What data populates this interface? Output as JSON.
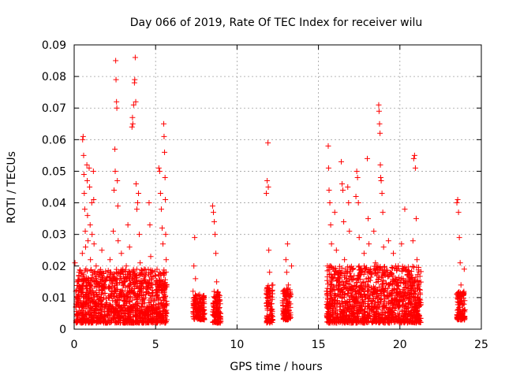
{
  "chart_data": {
    "type": "scatter",
    "title": "Day 066 of 2019, Rate Of TEC Index for receiver wilu",
    "xlabel": "GPS time / hours",
    "ylabel": "ROTI / TECUs",
    "xlim": [
      0,
      25
    ],
    "ylim": [
      0,
      0.09
    ],
    "xticks": [
      "0",
      "5",
      "10",
      "15",
      "20",
      "25"
    ],
    "yticks": [
      "0",
      "0.01",
      "0.02",
      "0.03",
      "0.04",
      "0.05",
      "0.06",
      "0.07",
      "0.08",
      "0.09"
    ],
    "grid": true,
    "marker": "plus",
    "color": "#ff0000",
    "series": [
      {
        "points": [
          [
            0.05,
            0.021
          ],
          [
            0.1,
            0.012
          ],
          [
            0.15,
            0.008
          ],
          [
            0.2,
            0.015
          ],
          [
            0.25,
            0.005
          ],
          [
            0.3,
            0.018
          ],
          [
            0.35,
            0.009
          ],
          [
            0.4,
            0.013
          ],
          [
            0.45,
            0.007
          ],
          [
            0.5,
            0.024
          ],
          [
            0.52,
            0.06
          ],
          [
            0.55,
            0.061
          ],
          [
            0.58,
            0.055
          ],
          [
            0.6,
            0.049
          ],
          [
            0.62,
            0.043
          ],
          [
            0.65,
            0.038
          ],
          [
            0.68,
            0.031
          ],
          [
            0.7,
            0.026
          ],
          [
            0.72,
            0.019
          ],
          [
            0.75,
            0.011
          ],
          [
            0.78,
            0.052
          ],
          [
            0.8,
            0.047
          ],
          [
            0.82,
            0.036
          ],
          [
            0.85,
            0.028
          ],
          [
            0.88,
            0.016
          ],
          [
            0.9,
            0.01
          ],
          [
            0.92,
            0.051
          ],
          [
            0.95,
            0.045
          ],
          [
            0.98,
            0.033
          ],
          [
            1.0,
            0.022
          ],
          [
            1.02,
            0.014
          ],
          [
            1.05,
            0.009
          ],
          [
            1.08,
            0.04
          ],
          [
            1.1,
            0.03
          ],
          [
            1.12,
            0.018
          ],
          [
            1.15,
            0.012
          ],
          [
            1.18,
            0.05
          ],
          [
            1.2,
            0.041
          ],
          [
            1.22,
            0.027
          ],
          [
            1.25,
            0.015
          ],
          [
            1.3,
            0.008
          ],
          [
            1.35,
            0.02
          ],
          [
            1.4,
            0.011
          ],
          [
            1.5,
            0.017
          ],
          [
            1.6,
            0.009
          ],
          [
            1.7,
            0.025
          ],
          [
            1.8,
            0.013
          ],
          [
            1.9,
            0.007
          ],
          [
            2.0,
            0.016
          ],
          [
            2.1,
            0.01
          ],
          [
            2.2,
            0.022
          ],
          [
            2.3,
            0.012
          ],
          [
            2.4,
            0.031
          ],
          [
            2.45,
            0.044
          ],
          [
            2.5,
            0.057
          ],
          [
            2.52,
            0.05
          ],
          [
            2.55,
            0.085
          ],
          [
            2.57,
            0.079
          ],
          [
            2.6,
            0.072
          ],
          [
            2.62,
            0.07
          ],
          [
            2.65,
            0.047
          ],
          [
            2.68,
            0.039
          ],
          [
            2.7,
            0.028
          ],
          [
            2.75,
            0.018
          ],
          [
            2.8,
            0.011
          ],
          [
            2.9,
            0.024
          ],
          [
            3.0,
            0.014
          ],
          [
            3.1,
            0.009
          ],
          [
            3.2,
            0.02
          ],
          [
            3.3,
            0.033
          ],
          [
            3.4,
            0.026
          ],
          [
            3.45,
            0.017
          ],
          [
            3.5,
            0.012
          ],
          [
            3.55,
            0.064
          ],
          [
            3.58,
            0.067
          ],
          [
            3.6,
            0.065
          ],
          [
            3.65,
            0.071
          ],
          [
            3.7,
            0.078
          ],
          [
            3.72,
            0.079
          ],
          [
            3.75,
            0.086
          ],
          [
            3.78,
            0.072
          ],
          [
            3.8,
            0.046
          ],
          [
            3.85,
            0.038
          ],
          [
            3.9,
            0.04
          ],
          [
            3.95,
            0.043
          ],
          [
            4.0,
            0.03
          ],
          [
            4.05,
            0.021
          ],
          [
            4.1,
            0.013
          ],
          [
            4.2,
            0.008
          ],
          [
            4.3,
            0.019
          ],
          [
            4.4,
            0.011
          ],
          [
            4.5,
            0.015
          ],
          [
            4.6,
            0.04
          ],
          [
            4.65,
            0.033
          ],
          [
            4.7,
            0.023
          ],
          [
            4.8,
            0.014
          ],
          [
            4.9,
            0.009
          ],
          [
            5.0,
            0.017
          ],
          [
            5.1,
            0.011
          ],
          [
            5.2,
            0.051
          ],
          [
            5.25,
            0.05
          ],
          [
            5.3,
            0.043
          ],
          [
            5.35,
            0.038
          ],
          [
            5.4,
            0.032
          ],
          [
            5.45,
            0.027
          ],
          [
            5.5,
            0.065
          ],
          [
            5.52,
            0.061
          ],
          [
            5.55,
            0.056
          ],
          [
            5.58,
            0.048
          ],
          [
            5.6,
            0.041
          ],
          [
            5.62,
            0.03
          ],
          [
            5.65,
            0.022
          ],
          [
            5.68,
            0.014
          ],
          [
            5.7,
            0.008
          ],
          [
            7.3,
            0.012
          ],
          [
            7.35,
            0.02
          ],
          [
            7.4,
            0.029
          ],
          [
            7.45,
            0.016
          ],
          [
            7.5,
            0.009
          ],
          [
            7.6,
            0.006
          ],
          [
            7.7,
            0.011
          ],
          [
            7.8,
            0.007
          ],
          [
            7.9,
            0.01
          ],
          [
            8.0,
            0.005
          ],
          [
            8.5,
            0.039
          ],
          [
            8.55,
            0.037
          ],
          [
            8.6,
            0.034
          ],
          [
            8.65,
            0.03
          ],
          [
            8.7,
            0.024
          ],
          [
            8.75,
            0.015
          ],
          [
            8.8,
            0.01
          ],
          [
            8.85,
            0.006
          ],
          [
            8.9,
            0.004
          ],
          [
            8.95,
            0.009
          ],
          [
            11.8,
            0.043
          ],
          [
            11.85,
            0.047
          ],
          [
            11.9,
            0.059
          ],
          [
            11.92,
            0.045
          ],
          [
            11.95,
            0.025
          ],
          [
            12.0,
            0.018
          ],
          [
            12.05,
            0.012
          ],
          [
            12.1,
            0.008
          ],
          [
            12.15,
            0.005
          ],
          [
            12.2,
            0.014
          ],
          [
            12.8,
            0.009
          ],
          [
            12.9,
            0.005
          ],
          [
            13.0,
            0.022
          ],
          [
            13.05,
            0.018
          ],
          [
            13.1,
            0.027
          ],
          [
            13.15,
            0.014
          ],
          [
            13.2,
            0.008
          ],
          [
            13.25,
            0.004
          ],
          [
            13.3,
            0.011
          ],
          [
            13.35,
            0.02
          ],
          [
            15.5,
            0.012
          ],
          [
            15.55,
            0.02
          ],
          [
            15.6,
            0.058
          ],
          [
            15.62,
            0.051
          ],
          [
            15.65,
            0.044
          ],
          [
            15.7,
            0.04
          ],
          [
            15.75,
            0.033
          ],
          [
            15.8,
            0.027
          ],
          [
            15.85,
            0.016
          ],
          [
            15.9,
            0.009
          ],
          [
            16.0,
            0.037
          ],
          [
            16.1,
            0.025
          ],
          [
            16.2,
            0.014
          ],
          [
            16.3,
            0.008
          ],
          [
            16.4,
            0.053
          ],
          [
            16.45,
            0.046
          ],
          [
            16.5,
            0.044
          ],
          [
            16.55,
            0.034
          ],
          [
            16.6,
            0.022
          ],
          [
            16.7,
            0.013
          ],
          [
            16.8,
            0.045
          ],
          [
            16.85,
            0.04
          ],
          [
            16.9,
            0.031
          ],
          [
            17.0,
            0.019
          ],
          [
            17.1,
            0.011
          ],
          [
            17.2,
            0.007
          ],
          [
            17.3,
            0.042
          ],
          [
            17.35,
            0.05
          ],
          [
            17.4,
            0.048
          ],
          [
            17.45,
            0.04
          ],
          [
            17.5,
            0.029
          ],
          [
            17.6,
            0.018
          ],
          [
            17.7,
            0.01
          ],
          [
            17.8,
            0.024
          ],
          [
            17.9,
            0.014
          ],
          [
            18.0,
            0.054
          ],
          [
            18.05,
            0.035
          ],
          [
            18.1,
            0.027
          ],
          [
            18.2,
            0.019
          ],
          [
            18.3,
            0.011
          ],
          [
            18.4,
            0.031
          ],
          [
            18.5,
            0.021
          ],
          [
            18.6,
            0.012
          ],
          [
            18.7,
            0.071
          ],
          [
            18.72,
            0.069
          ],
          [
            18.75,
            0.065
          ],
          [
            18.78,
            0.062
          ],
          [
            18.8,
            0.052
          ],
          [
            18.82,
            0.048
          ],
          [
            18.85,
            0.047
          ],
          [
            18.9,
            0.043
          ],
          [
            18.95,
            0.037
          ],
          [
            19.0,
            0.026
          ],
          [
            19.1,
            0.017
          ],
          [
            19.2,
            0.01
          ],
          [
            19.3,
            0.028
          ],
          [
            19.4,
            0.018
          ],
          [
            19.5,
            0.011
          ],
          [
            19.6,
            0.024
          ],
          [
            19.7,
            0.015
          ],
          [
            19.8,
            0.009
          ],
          [
            19.9,
            0.02
          ],
          [
            20.0,
            0.012
          ],
          [
            20.1,
            0.027
          ],
          [
            20.2,
            0.016
          ],
          [
            20.3,
            0.038
          ],
          [
            20.4,
            0.019
          ],
          [
            20.5,
            0.01
          ],
          [
            20.6,
            0.016
          ],
          [
            20.7,
            0.008
          ],
          [
            20.8,
            0.028
          ],
          [
            20.85,
            0.054
          ],
          [
            20.9,
            0.055
          ],
          [
            20.95,
            0.051
          ],
          [
            21.0,
            0.035
          ],
          [
            21.05,
            0.022
          ],
          [
            21.1,
            0.014
          ],
          [
            21.15,
            0.008
          ],
          [
            21.2,
            0.004
          ],
          [
            21.25,
            0.011
          ],
          [
            23.5,
            0.04
          ],
          [
            23.55,
            0.041
          ],
          [
            23.6,
            0.037
          ],
          [
            23.65,
            0.029
          ],
          [
            23.7,
            0.021
          ],
          [
            23.75,
            0.014
          ],
          [
            23.8,
            0.009
          ],
          [
            23.85,
            0.005
          ],
          [
            23.9,
            0.011
          ],
          [
            23.95,
            0.019
          ]
        ]
      }
    ],
    "dense_bands": [
      [
        0.1,
        5.7,
        0.002,
        0.019
      ],
      [
        7.3,
        8.0,
        0.003,
        0.011
      ],
      [
        8.5,
        9.0,
        0.002,
        0.012
      ],
      [
        11.8,
        12.2,
        0.002,
        0.014
      ],
      [
        12.8,
        13.3,
        0.003,
        0.013
      ],
      [
        15.5,
        21.3,
        0.002,
        0.02
      ],
      [
        23.5,
        24.0,
        0.003,
        0.012
      ]
    ]
  }
}
